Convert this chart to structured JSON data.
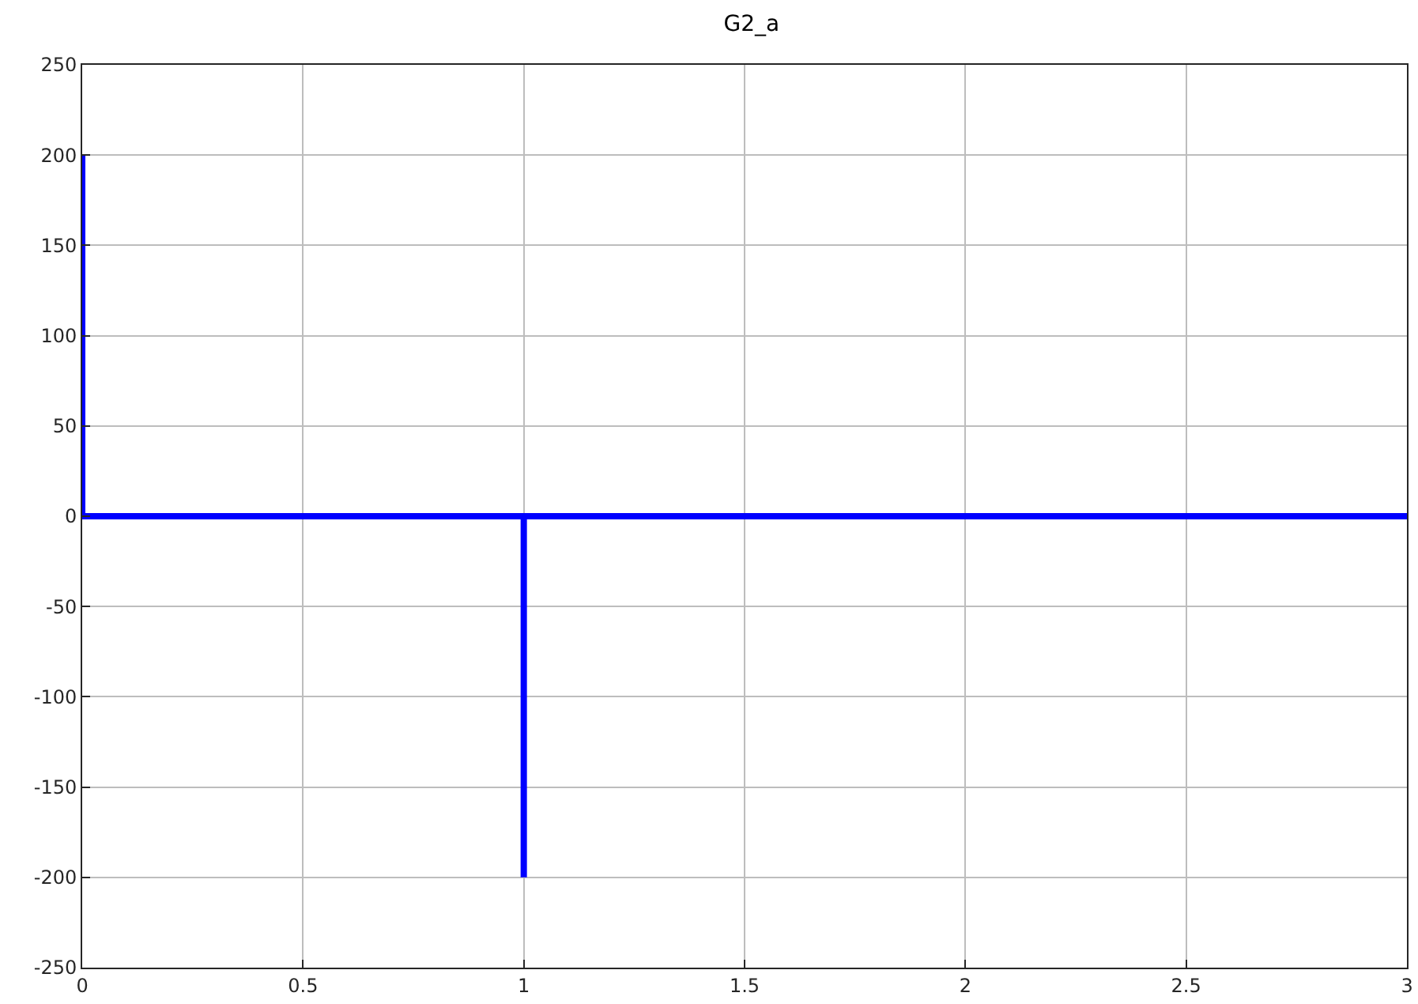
{
  "chart_data": {
    "type": "line",
    "title": "G2_a",
    "x": [
      0,
      0,
      1,
      1,
      1,
      3
    ],
    "series": [
      {
        "color": "#0000ff",
        "values": [
          200,
          0,
          0,
          -200,
          0,
          0
        ]
      }
    ],
    "xlim": [
      0,
      3
    ],
    "xticks": [
      0,
      0.5,
      1,
      1.5,
      2,
      2.5,
      3
    ],
    "ylim": [
      -250,
      250
    ],
    "yticks": [
      -250,
      -200,
      -150,
      -100,
      -50,
      0,
      50,
      100,
      150,
      200,
      250
    ],
    "grid": true,
    "marker": "none",
    "line_style": "solid"
  }
}
